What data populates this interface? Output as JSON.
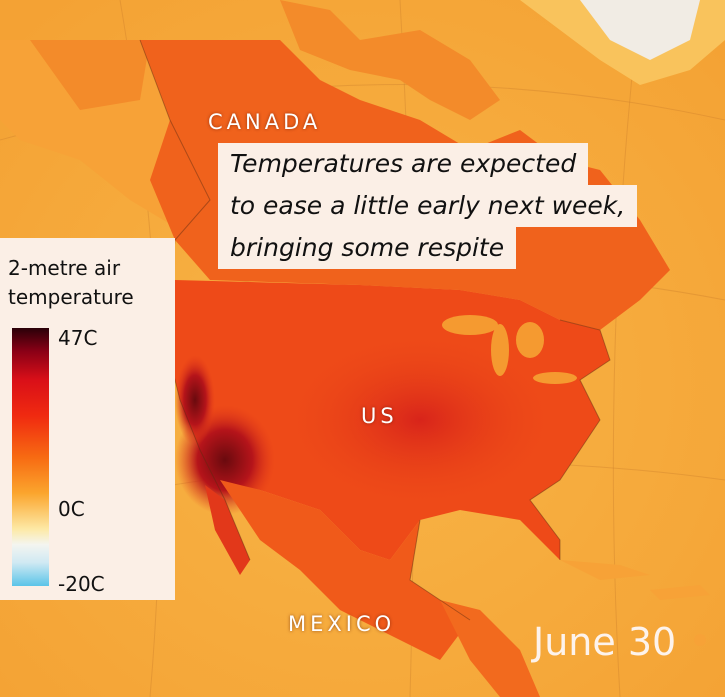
{
  "map": {
    "callout_lines": [
      "Temperatures are expected",
      "to ease a little early next week,",
      "bringing some respite"
    ],
    "labels": {
      "canada": "CANADA",
      "us": "US",
      "mexico": "MEXICO"
    },
    "date": "June 30"
  },
  "legend": {
    "title_line1": "2-metre air",
    "title_line2": "temperature",
    "max_label": "47C",
    "zero_label": "0C",
    "min_label": "-20C",
    "colors": {
      "ocean": "#f6a93a",
      "land_hot": "#ee4a18",
      "land_extreme": "#7a0b10",
      "land_cool": "#f9c35c",
      "ice": "#f1ece4",
      "cold": "#5bc4e8"
    }
  }
}
